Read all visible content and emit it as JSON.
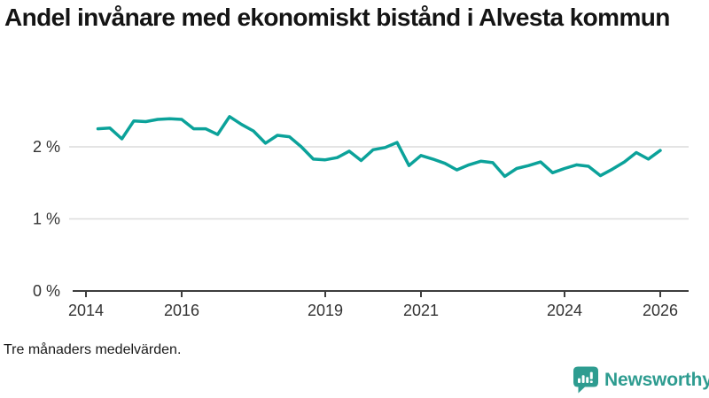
{
  "page": {
    "title": "Andel invånare med ekonomiskt bistånd i Alvesta kommun",
    "footnote": "Tre månaders medelvärden."
  },
  "brand": {
    "name": "Newsworthy",
    "color": "#2E9C90",
    "icon": "bar-chart-speech-bubble-icon"
  },
  "chart_data": {
    "type": "line",
    "title": "Andel invånare med ekonomiskt bistånd i Alvesta kommun",
    "subtitle": "Tre månaders medelvärden.",
    "unit": "%",
    "line_color": "#0BA29A",
    "grid": "horizontal",
    "legend": "none",
    "xlim": [
      2013.6,
      2026.6
    ],
    "ylim": [
      0,
      2.6
    ],
    "x_ticks": [
      2014,
      2016,
      2019,
      2021,
      2024,
      2026
    ],
    "y_ticks": [
      {
        "value": 0,
        "label": "0 %"
      },
      {
        "value": 1,
        "label": "1 %"
      },
      {
        "value": 2,
        "label": "2 %"
      }
    ],
    "series": [
      {
        "name": "Alvesta kommun",
        "x": [
          2014.25,
          2014.5,
          2014.75,
          2015.0,
          2015.25,
          2015.5,
          2015.75,
          2016.0,
          2016.25,
          2016.5,
          2016.75,
          2017.0,
          2017.25,
          2017.5,
          2017.75,
          2018.0,
          2018.25,
          2018.5,
          2018.75,
          2019.0,
          2019.25,
          2019.5,
          2019.75,
          2020.0,
          2020.25,
          2020.5,
          2020.75,
          2021.0,
          2021.25,
          2021.5,
          2021.75,
          2022.0,
          2022.25,
          2022.5,
          2022.75,
          2023.0,
          2023.25,
          2023.5,
          2023.75,
          2024.0,
          2024.25,
          2024.5,
          2024.75,
          2025.0,
          2025.25,
          2025.5,
          2025.75,
          2026.0
        ],
        "y": [
          2.25,
          2.26,
          2.11,
          2.36,
          2.35,
          2.38,
          2.39,
          2.38,
          2.25,
          2.25,
          2.17,
          2.42,
          2.31,
          2.22,
          2.05,
          2.16,
          2.14,
          2.0,
          1.83,
          1.82,
          1.85,
          1.94,
          1.81,
          1.96,
          1.99,
          2.06,
          1.74,
          1.88,
          1.83,
          1.77,
          1.68,
          1.75,
          1.8,
          1.78,
          1.59,
          1.7,
          1.74,
          1.79,
          1.64,
          1.7,
          1.75,
          1.73,
          1.6,
          1.69,
          1.79,
          1.92,
          1.83,
          1.95
        ]
      }
    ]
  }
}
